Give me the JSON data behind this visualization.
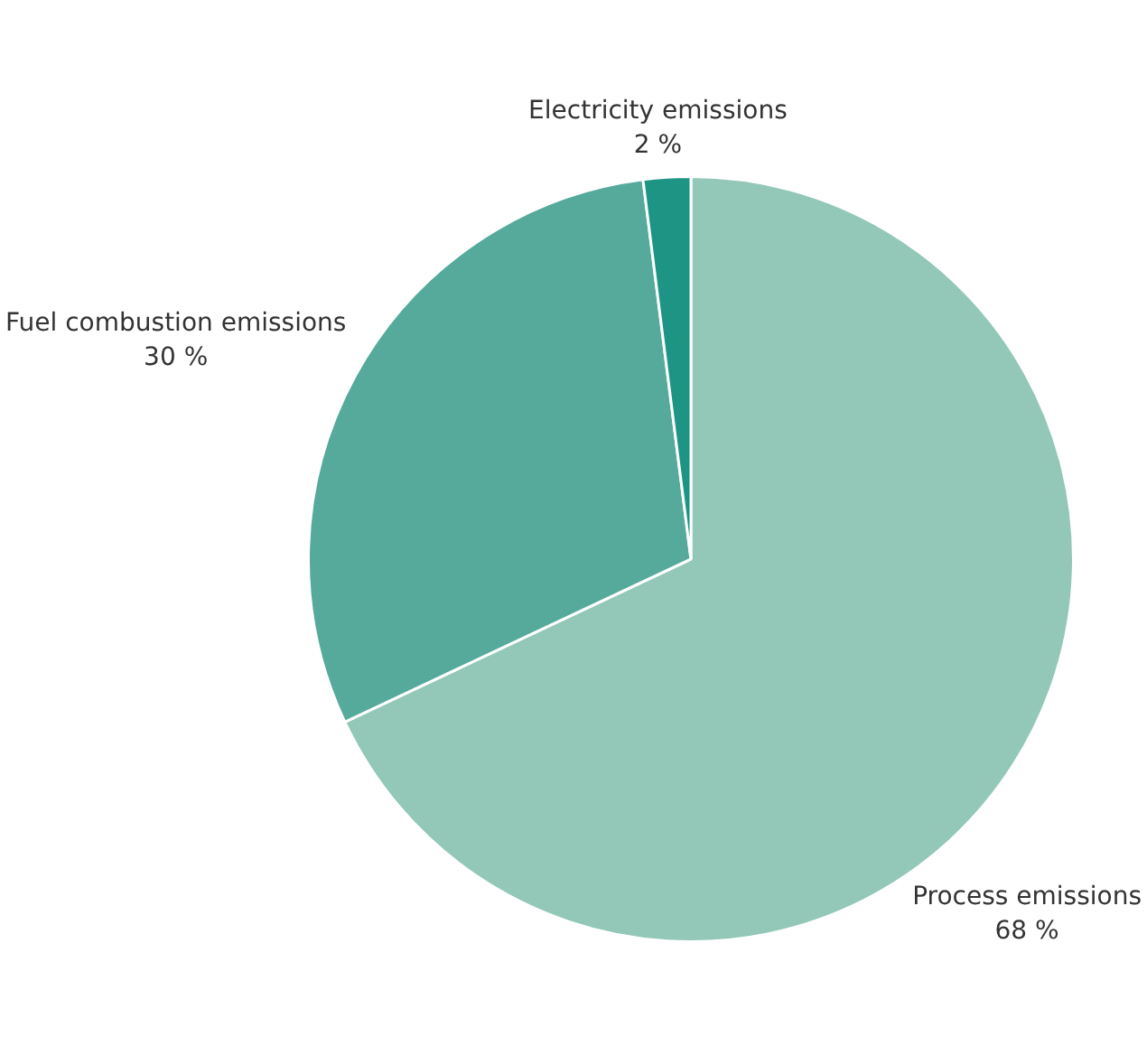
{
  "chart_data": {
    "type": "pie",
    "categories": [
      "Process emissions",
      "Fuel combustion emissions",
      "Electricity emissions"
    ],
    "values": [
      68,
      30,
      2
    ],
    "value_labels": [
      "68 %",
      "30 %",
      "2 %"
    ],
    "colors": [
      "#93c8b9",
      "#55aa9c",
      "#1e9484"
    ],
    "legend": false
  }
}
